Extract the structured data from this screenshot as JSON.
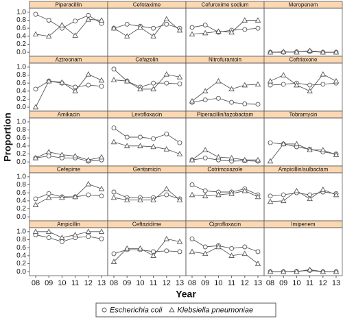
{
  "chart_data": {
    "type": "line",
    "x_label": "Year",
    "y_label": "Proportion",
    "categories": [
      "08",
      "09",
      "10",
      "11",
      "12",
      "13"
    ],
    "ylim": [
      -0.1,
      1.1
    ],
    "yticks": [
      {
        "value": 0,
        "label": "0.0"
      },
      0.2,
      0.4,
      0.6,
      0.8,
      {
        "value": 1,
        "label": "1.0"
      }
    ],
    "series": [
      {
        "name": "Escherichia coli",
        "color": "#555555",
        "marker": "circle"
      },
      {
        "name": "Klebsiella pneumoniae",
        "color": "#555555",
        "marker": "triangle"
      }
    ],
    "panels": [
      {
        "title": "Piperacillin",
        "values": [
          [
            0.95,
            0.8,
            0.6,
            0.78,
            0.92,
            0.72
          ],
          [
            0.45,
            0.4,
            0.68,
            0.42,
            0.82,
            0.8
          ]
        ]
      },
      {
        "title": "Cefotaxime",
        "values": [
          [
            0.6,
            0.7,
            0.65,
            0.6,
            0.7,
            0.6
          ],
          [
            0.6,
            0.4,
            0.62,
            0.4,
            0.83,
            0.55
          ]
        ]
      },
      {
        "title": "Cefuroxime sodium",
        "values": [
          [
            0.62,
            0.68,
            0.5,
            0.55,
            0.57,
            0.6
          ],
          [
            0.45,
            0.48,
            0.52,
            0.5,
            0.8,
            0.8
          ]
        ]
      },
      {
        "title": "Meropenem",
        "values": [
          [
            0,
            0,
            0.01,
            0.02,
            0,
            0
          ],
          [
            0,
            0.01,
            0,
            0.04,
            0,
            0
          ]
        ]
      },
      {
        "title": "Aztreonam",
        "values": [
          [
            0.45,
            0.65,
            0.6,
            0.5,
            0.55,
            0.52
          ],
          [
            0,
            0.65,
            0.62,
            0.4,
            0.82,
            0.67
          ]
        ]
      },
      {
        "title": "Cefazolin",
        "values": [
          [
            0.95,
            0.65,
            0.5,
            0.6,
            0.6,
            0.58
          ],
          [
            0.68,
            0.65,
            0.45,
            0.45,
            0.82,
            0.75
          ]
        ]
      },
      {
        "title": "Nitrofurantoin",
        "values": [
          [
            0.12,
            0.18,
            0.22,
            0.12,
            0.08,
            0.07
          ],
          [
            0.15,
            0.4,
            0.65,
            0.45,
            0.55,
            0.57
          ]
        ]
      },
      {
        "title": "Ceftriaxone",
        "values": [
          [
            0.55,
            0.57,
            0.6,
            0.55,
            0.57,
            0.6
          ],
          [
            0.65,
            0.8,
            0.55,
            0.4,
            0.82,
            0.65
          ]
        ]
      },
      {
        "title": "Amikacin",
        "values": [
          [
            0.1,
            0.15,
            0.1,
            0.1,
            0.02,
            0.05
          ],
          [
            0.1,
            0.25,
            0.18,
            0.15,
            0.05,
            0.12
          ]
        ]
      },
      {
        "title": "Levofloxacin",
        "values": [
          [
            0.85,
            0.62,
            0.62,
            0.58,
            0.7,
            0.48
          ],
          [
            0.5,
            0.4,
            0.4,
            0.38,
            0.32,
            0.2
          ]
        ]
      },
      {
        "title": "Piperacillin/tazobactam",
        "values": [
          [
            0.05,
            0.1,
            0.05,
            0.02,
            0.03,
            0.02
          ],
          [
            0.05,
            0.3,
            0.12,
            0.1,
            0.05,
            0.05
          ]
        ]
      },
      {
        "title": "Tobramycin",
        "values": [
          [
            0.48,
            0.45,
            0.38,
            0.32,
            0.25,
            0.2
          ],
          [
            0.02,
            0.45,
            0.45,
            0.3,
            0.3,
            0.18
          ]
        ]
      },
      {
        "title": "Cefepime",
        "values": [
          [
            0.45,
            0.58,
            0.5,
            0.5,
            0.55,
            0.52
          ],
          [
            0.3,
            0.48,
            0.48,
            0.5,
            0.82,
            0.7
          ]
        ]
      },
      {
        "title": "Gentamicin",
        "values": [
          [
            0.62,
            0.48,
            0.48,
            0.48,
            0.55,
            0.45
          ],
          [
            0.48,
            0.42,
            0.42,
            0.42,
            0.7,
            0.42
          ]
        ]
      },
      {
        "title": "Cotrimoxazole",
        "values": [
          [
            0.8,
            0.65,
            0.62,
            0.62,
            0.7,
            0.55
          ],
          [
            0.55,
            0.52,
            0.55,
            0.58,
            0.65,
            0.5
          ]
        ]
      },
      {
        "title": "Ampicillin/sulbactam",
        "values": [
          [
            0.52,
            0.55,
            0.6,
            0.55,
            0.62,
            0.58
          ],
          [
            0.38,
            0.4,
            0.65,
            0.45,
            0.68,
            0.55
          ]
        ]
      },
      {
        "title": "Ampicillin",
        "values": [
          [
            0.92,
            0.85,
            0.75,
            0.85,
            0.88,
            0.82
          ],
          [
            1,
            1,
            0.85,
            0.92,
            1,
            1
          ]
        ]
      },
      {
        "title": "Ceftazidime",
        "values": [
          [
            0.45,
            0.55,
            0.55,
            0.5,
            0.52,
            0.5
          ],
          [
            0.25,
            0.58,
            0.58,
            0.4,
            0.82,
            0.75
          ]
        ]
      },
      {
        "title": "Ciprofloxacin",
        "values": [
          [
            0.82,
            0.62,
            0.65,
            0.58,
            0.62,
            0.5
          ],
          [
            0.5,
            0.45,
            0.62,
            0.4,
            0.45,
            0.2
          ]
        ]
      },
      {
        "title": "Imipenem",
        "values": [
          [
            0,
            0,
            0.01,
            0.03,
            0,
            0
          ],
          [
            0,
            0,
            0,
            0.05,
            0,
            0
          ]
        ]
      }
    ]
  }
}
